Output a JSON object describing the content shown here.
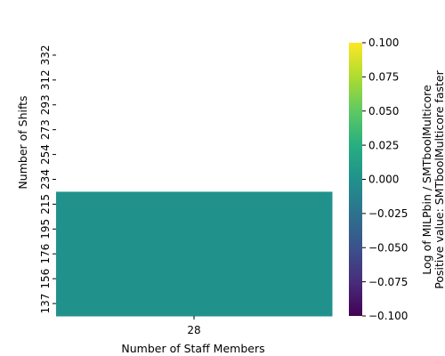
{
  "chart_data": {
    "type": "heatmap",
    "xlabel": "Number of Staff Members",
    "ylabel": "Number of Shifts",
    "x_categories": [
      "28"
    ],
    "y_categories": [
      "332",
      "312",
      "293",
      "273",
      "254",
      "234",
      "215",
      "195",
      "176",
      "156",
      "137"
    ],
    "cells": [
      {
        "x": "28",
        "y": "332",
        "value": null
      },
      {
        "x": "28",
        "y": "312",
        "value": null
      },
      {
        "x": "28",
        "y": "293",
        "value": null
      },
      {
        "x": "28",
        "y": "273",
        "value": null
      },
      {
        "x": "28",
        "y": "254",
        "value": null
      },
      {
        "x": "28",
        "y": "234",
        "value": null
      },
      {
        "x": "28",
        "y": "215",
        "value": 0.0
      },
      {
        "x": "28",
        "y": "195",
        "value": 0.0
      },
      {
        "x": "28",
        "y": "176",
        "value": 0.0
      },
      {
        "x": "28",
        "y": "156",
        "value": 0.0
      },
      {
        "x": "28",
        "y": "137",
        "value": 0.0
      }
    ],
    "colorbar": {
      "colormap": "viridis",
      "range": [
        -0.1,
        0.1
      ],
      "ticks": [
        {
          "value": 0.1,
          "label": "0.100"
        },
        {
          "value": 0.075,
          "label": "0.075"
        },
        {
          "value": 0.05,
          "label": "0.050"
        },
        {
          "value": 0.025,
          "label": "0.025"
        },
        {
          "value": 0.0,
          "label": "0.000"
        },
        {
          "value": -0.025,
          "label": "−0.025"
        },
        {
          "value": -0.05,
          "label": "−0.050"
        },
        {
          "value": -0.075,
          "label": "−0.075"
        },
        {
          "value": -0.1,
          "label": "−0.100"
        }
      ],
      "label_line1": "Log of MILPbin / SMTboolMulticore",
      "label_line2": "Positive value: SMTboolMulticore faster"
    },
    "grid": false,
    "legend": "none"
  }
}
